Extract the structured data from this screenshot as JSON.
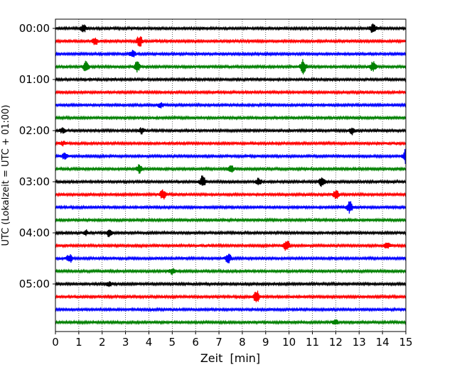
{
  "chart_data": {
    "type": "line",
    "title": "",
    "xlabel": "Zeit  [min]",
    "ylabel": "UTC (Lokalzeit = UTC + 01:00)",
    "xlim": [
      0,
      15
    ],
    "x_ticks": [
      "0",
      "1",
      "2",
      "3",
      "4",
      "5",
      "6",
      "7",
      "8",
      "9",
      "10",
      "11",
      "12",
      "13",
      "14",
      "15"
    ],
    "y_ticks": [
      "00:00",
      "01:00",
      "02:00",
      "03:00",
      "04:00",
      "05:00"
    ],
    "grid": "vertical dotted",
    "legend": "none",
    "trace_interval_minutes": 15,
    "color_cycle": [
      "#000000",
      "#ff0000",
      "#0000ff",
      "#008000"
    ],
    "traces": [
      {
        "start": "00:00",
        "color": "#000000",
        "events": [
          {
            "t": 1.2,
            "amp": 0.6
          },
          {
            "t": 13.6,
            "amp": 0.9
          }
        ]
      },
      {
        "start": "00:15",
        "color": "#ff0000",
        "events": [
          {
            "t": 1.7,
            "amp": 0.7
          },
          {
            "t": 3.6,
            "amp": 1.0
          }
        ]
      },
      {
        "start": "00:30",
        "color": "#0000ff",
        "events": [
          {
            "t": 3.3,
            "amp": 0.6
          }
        ]
      },
      {
        "start": "00:45",
        "color": "#008000",
        "events": [
          {
            "t": 1.3,
            "amp": 0.9
          },
          {
            "t": 3.5,
            "amp": 0.9
          },
          {
            "t": 10.6,
            "amp": 1.2
          },
          {
            "t": 13.6,
            "amp": 0.9
          }
        ]
      },
      {
        "start": "01:00",
        "color": "#000000",
        "events": []
      },
      {
        "start": "01:15",
        "color": "#ff0000",
        "events": []
      },
      {
        "start": "01:30",
        "color": "#0000ff",
        "events": [
          {
            "t": 4.5,
            "amp": 0.4
          }
        ]
      },
      {
        "start": "01:45",
        "color": "#008000",
        "events": []
      },
      {
        "start": "02:00",
        "color": "#000000",
        "events": [
          {
            "t": 0.3,
            "amp": 0.4
          },
          {
            "t": 3.7,
            "amp": 0.5
          },
          {
            "t": 12.7,
            "amp": 0.6
          }
        ]
      },
      {
        "start": "02:15",
        "color": "#ff0000",
        "events": [
          {
            "t": 0.3,
            "amp": 0.4
          }
        ]
      },
      {
        "start": "02:30",
        "color": "#0000ff",
        "events": [
          {
            "t": 0.4,
            "amp": 0.6
          },
          {
            "t": 15.0,
            "amp": 1.2
          }
        ]
      },
      {
        "start": "02:45",
        "color": "#008000",
        "events": [
          {
            "t": 3.6,
            "amp": 0.8
          },
          {
            "t": 7.5,
            "amp": 0.7
          }
        ]
      },
      {
        "start": "03:00",
        "color": "#000000",
        "events": [
          {
            "t": 6.3,
            "amp": 1.0
          },
          {
            "t": 8.7,
            "amp": 0.6
          },
          {
            "t": 11.4,
            "amp": 0.8
          }
        ]
      },
      {
        "start": "03:15",
        "color": "#ff0000",
        "events": [
          {
            "t": 4.6,
            "amp": 0.9
          },
          {
            "t": 12.0,
            "amp": 0.8
          }
        ]
      },
      {
        "start": "03:30",
        "color": "#0000ff",
        "events": [
          {
            "t": 12.6,
            "amp": 1.0
          }
        ]
      },
      {
        "start": "03:45",
        "color": "#008000",
        "events": []
      },
      {
        "start": "04:00",
        "color": "#000000",
        "events": [
          {
            "t": 1.3,
            "amp": 0.4
          },
          {
            "t": 2.3,
            "amp": 0.6
          }
        ]
      },
      {
        "start": "04:15",
        "color": "#ff0000",
        "events": [
          {
            "t": 9.9,
            "amp": 1.0
          },
          {
            "t": 14.2,
            "amp": 0.6
          }
        ]
      },
      {
        "start": "04:30",
        "color": "#0000ff",
        "events": [
          {
            "t": 0.6,
            "amp": 0.7
          },
          {
            "t": 7.4,
            "amp": 0.8
          }
        ]
      },
      {
        "start": "04:45",
        "color": "#008000",
        "events": [
          {
            "t": 5.0,
            "amp": 0.5
          }
        ]
      },
      {
        "start": "05:00",
        "color": "#000000",
        "events": [
          {
            "t": 2.3,
            "amp": 0.4
          }
        ]
      },
      {
        "start": "05:15",
        "color": "#ff0000",
        "events": [
          {
            "t": 8.6,
            "amp": 1.1
          }
        ]
      },
      {
        "start": "05:30",
        "color": "#0000ff",
        "events": []
      },
      {
        "start": "05:45",
        "color": "#008000",
        "events": [
          {
            "t": 12.0,
            "amp": 0.4
          }
        ]
      }
    ]
  }
}
